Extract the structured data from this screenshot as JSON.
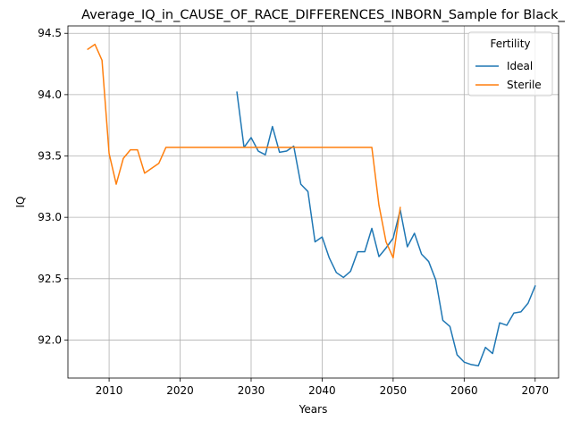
{
  "chart_data": {
    "type": "line",
    "title": "Average_IQ_in_CAUSE_OF_RACE_DIFFERENCES_INBORN_Sample for Black_",
    "xlabel": "Years",
    "ylabel": "IQ",
    "xlim": [
      2004.2,
      2073.3
    ],
    "ylim": [
      91.69,
      94.56
    ],
    "xticks": [
      2010,
      2020,
      2030,
      2040,
      2050,
      2060,
      2070
    ],
    "yticks": [
      92.0,
      92.5,
      93.0,
      93.5,
      94.0,
      94.5
    ],
    "grid": true,
    "legend": {
      "title": "Fertility",
      "position": "top-right"
    },
    "series": [
      {
        "name": "Ideal",
        "color": "#1f77b4",
        "x": [
          2028,
          2029,
          2030,
          2031,
          2032,
          2033,
          2034,
          2035,
          2036,
          2037,
          2038,
          2039,
          2040,
          2041,
          2042,
          2043,
          2044,
          2045,
          2046,
          2047,
          2048,
          2049,
          2050,
          2051,
          2052,
          2053,
          2054,
          2055,
          2056,
          2057,
          2058,
          2059,
          2060,
          2061,
          2062,
          2063,
          2064,
          2065,
          2066,
          2067,
          2068,
          2069,
          2070
        ],
        "y": [
          94.02,
          93.57,
          93.65,
          93.54,
          93.51,
          93.74,
          93.53,
          93.54,
          93.58,
          93.27,
          93.21,
          92.8,
          92.84,
          92.67,
          92.55,
          92.51,
          92.56,
          92.72,
          92.72,
          92.91,
          92.68,
          92.75,
          92.83,
          93.06,
          92.76,
          92.87,
          92.7,
          92.64,
          92.49,
          92.16,
          92.11,
          91.88,
          91.82,
          91.8,
          91.79,
          91.94,
          91.89,
          92.14,
          92.12,
          92.22,
          92.23,
          92.3,
          92.44
        ]
      },
      {
        "name": "Sterile",
        "color": "#ff7f0e",
        "x": [
          2007,
          2008,
          2009,
          2010,
          2011,
          2012,
          2013,
          2014,
          2015,
          2016,
          2017,
          2018,
          2019,
          2020,
          2025,
          2030,
          2035,
          2040,
          2045,
          2046,
          2047,
          2048,
          2049,
          2050,
          2051
        ],
        "y": [
          94.37,
          94.41,
          94.28,
          93.52,
          93.27,
          93.48,
          93.55,
          93.55,
          93.36,
          93.4,
          93.44,
          93.57,
          93.57,
          93.57,
          93.57,
          93.57,
          93.57,
          93.57,
          93.57,
          93.57,
          93.57,
          93.1,
          92.8,
          92.67,
          93.08
        ]
      }
    ]
  }
}
